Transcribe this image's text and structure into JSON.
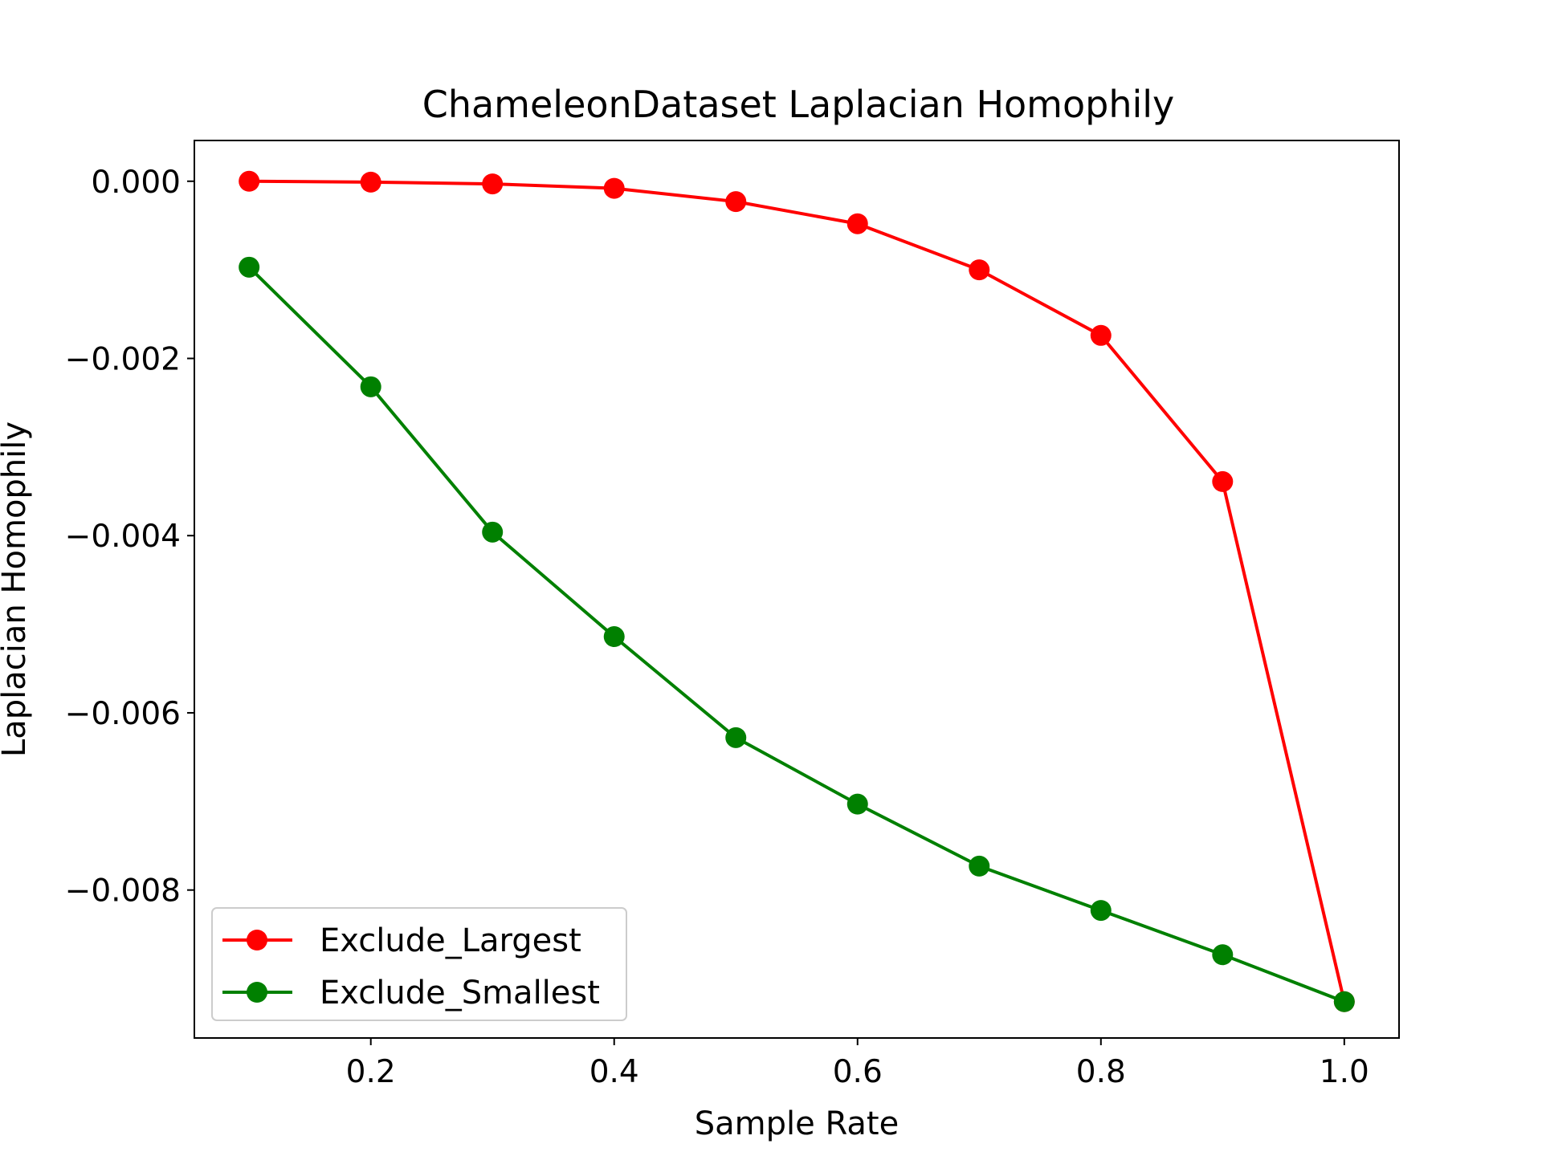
{
  "chart_data": {
    "type": "line",
    "title": "ChameleonDataset Laplacian Homophily",
    "xlabel": "Sample Rate",
    "ylabel": "Laplacian Homophily",
    "x": [
      0.1,
      0.2,
      0.3,
      0.4,
      0.5,
      0.6,
      0.7,
      0.8,
      0.9,
      1.0
    ],
    "xlim": [
      0.055,
      1.045
    ],
    "ylim": [
      -0.00967,
      0.00046
    ],
    "xticks": [
      0.2,
      0.4,
      0.6,
      0.8,
      1.0
    ],
    "xtick_labels": [
      "0.2",
      "0.4",
      "0.6",
      "0.8",
      "1.0"
    ],
    "yticks": [
      0.0,
      -0.002,
      -0.004,
      -0.006,
      -0.008
    ],
    "ytick_labels": [
      "0.000",
      "−0.002",
      "−0.004",
      "−0.006",
      "−0.008"
    ],
    "grid": false,
    "legend_position": "lower-left",
    "series": [
      {
        "name": "Exclude_Largest",
        "color": "#ff0000",
        "marker": "circle",
        "values": [
          0.0,
          -1e-05,
          -3e-05,
          -8e-05,
          -0.00023,
          -0.00048,
          -0.001,
          -0.00174,
          -0.00339,
          -0.00926
        ]
      },
      {
        "name": "Exclude_Smallest",
        "color": "#008000",
        "marker": "circle",
        "values": [
          -0.00097,
          -0.00232,
          -0.00396,
          -0.00514,
          -0.00628,
          -0.00703,
          -0.00773,
          -0.00823,
          -0.00873,
          -0.00926
        ]
      }
    ]
  }
}
